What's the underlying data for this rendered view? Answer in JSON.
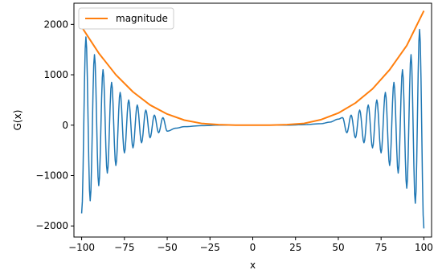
{
  "chart_data": {
    "type": "line",
    "title": "",
    "xlabel": "x",
    "ylabel": "G(x)",
    "xlim": [
      -104.5,
      104.5
    ],
    "ylim": [
      -2220,
      2420
    ],
    "xticks": [
      -100,
      -75,
      -50,
      -25,
      0,
      25,
      50,
      75,
      100
    ],
    "xtick_labels": [
      "−100",
      "−75",
      "−50",
      "−25",
      "0",
      "25",
      "50",
      "75",
      "100"
    ],
    "yticks": [
      -2000,
      -1000,
      0,
      1000,
      2000
    ],
    "ytick_labels": [
      "−2000",
      "−1000",
      "0",
      "1000",
      "2000"
    ],
    "grid": false,
    "legend_position": "upper-left",
    "series": [
      {
        "name": "",
        "color": "#1f77b4",
        "description_points": {
          "x": [
            -100,
            -97.5,
            -95,
            -92.5,
            -90,
            -87.5,
            -85,
            -82.5,
            -80,
            -77.5,
            -75,
            -72.5,
            -70,
            -67.5,
            -65,
            -62.5,
            -60,
            -57.5,
            -55,
            -52.5,
            -50,
            -45,
            -40,
            -30,
            -20,
            0,
            20,
            30,
            40,
            45,
            50,
            52.5,
            55,
            57.5,
            60,
            62.5,
            65,
            67.5,
            70,
            72.5,
            75,
            77.5,
            80,
            82.5,
            85,
            87.5,
            90,
            92.5,
            95,
            97.5,
            100
          ],
          "y": [
            -1750,
            1750,
            -1500,
            1400,
            -1200,
            1100,
            -950,
            850,
            -800,
            650,
            -550,
            500,
            -450,
            400,
            -350,
            300,
            -250,
            200,
            -150,
            150,
            -120,
            -60,
            -30,
            -10,
            0,
            0,
            0,
            10,
            30,
            60,
            120,
            150,
            -150,
            200,
            -250,
            300,
            -350,
            400,
            -450,
            500,
            -550,
            650,
            -800,
            850,
            -950,
            1100,
            -1250,
            1400,
            -1550,
            1900,
            -2050
          ]
        }
      },
      {
        "name": "magnitude",
        "color": "#ff7f0e",
        "x": [
          -100,
          -90,
          -80,
          -70,
          -60,
          -50,
          -40,
          -30,
          -20,
          -10,
          0,
          10,
          20,
          30,
          40,
          50,
          60,
          70,
          80,
          90,
          100
        ],
        "y": [
          1950,
          1430,
          1000,
          660,
          400,
          220,
          100,
          35,
          10,
          0,
          0,
          0,
          10,
          35,
          110,
          240,
          440,
          720,
          1100,
          1580,
          2270
        ]
      }
    ]
  }
}
